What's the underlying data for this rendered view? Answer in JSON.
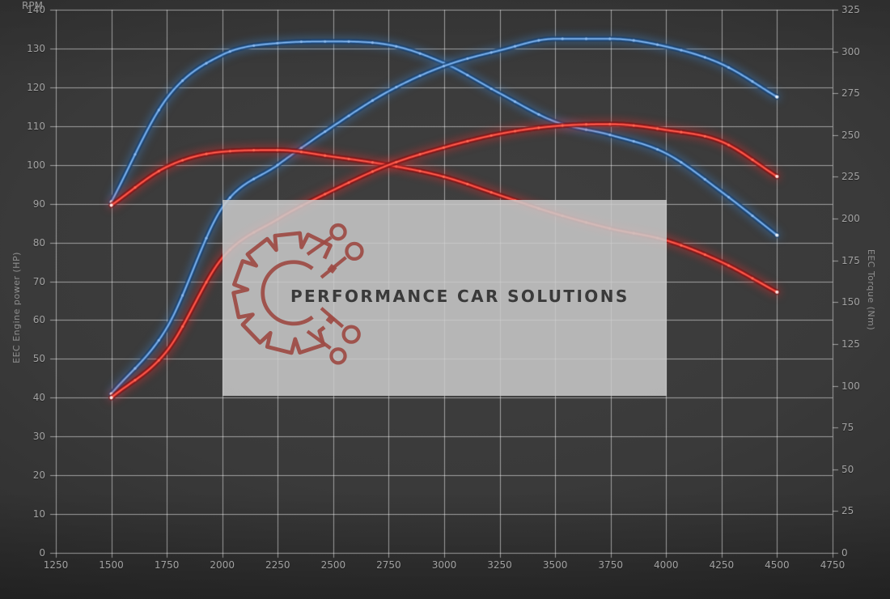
{
  "watermark": {
    "text": "PERFORMANCE CAR SOLUTIONS",
    "logo_icon": "gear-circuit-icon",
    "box_color": "#cbcbcb",
    "logo_color": "#9d4b44",
    "text_color": "#3a3a3a"
  },
  "colors": {
    "background_center": "#3f3f3f",
    "background_edge": "#232323",
    "gridline": "rgba(255,255,255,0.52)",
    "tick_text": "#a2a2a2",
    "axis_title_text": "#8f8f8f",
    "red_curve": "#e23030",
    "red_glow": "#7d1212",
    "red_core": "#ff6a55",
    "blue_curve": "#3f80c6",
    "blue_glow": "#173f6e",
    "blue_core": "#8fbcee"
  },
  "chart_data": {
    "type": "line",
    "title": "",
    "xlabel": "RPM",
    "grid": true,
    "legend": false,
    "x_ticks": [
      1250,
      1500,
      1750,
      2000,
      2250,
      2500,
      2750,
      3000,
      3250,
      3500,
      3750,
      4000,
      4250,
      4500,
      4750
    ],
    "left_axis": {
      "label": "EEC Engine power (HP)",
      "range": [
        0,
        140
      ],
      "ticks": [
        0,
        10,
        20,
        30,
        40,
        50,
        60,
        70,
        80,
        90,
        100,
        110,
        120,
        130,
        140
      ]
    },
    "right_axis": {
      "label": "EEC Torque (Nm)",
      "range": [
        0,
        325
      ],
      "ticks": [
        0,
        25,
        50,
        75,
        100,
        125,
        150,
        175,
        200,
        225,
        250,
        275,
        300,
        325
      ]
    },
    "x": [
      1500,
      1750,
      2000,
      2250,
      2500,
      2750,
      3000,
      3250,
      3500,
      3750,
      4000,
      4250,
      4500
    ],
    "series": [
      {
        "name": "torque-blue",
        "axis": "right",
        "unit": "Nm",
        "color": "blue",
        "values": [
          210,
          272,
          298,
          305,
          306,
          304,
          293,
          275,
          258,
          250,
          239,
          216,
          190
        ]
      },
      {
        "name": "power-blue",
        "axis": "left",
        "unit": "HP",
        "color": "blue",
        "values": [
          41,
          58,
          89,
          100,
          110,
          119,
          125.5,
          129.5,
          132.5,
          132.5,
          130.5,
          126,
          117.5
        ]
      },
      {
        "name": "torque-red",
        "axis": "right",
        "unit": "Nm",
        "color": "red",
        "values": [
          208,
          231,
          240,
          241,
          237,
          232,
          225,
          214,
          203,
          194,
          187,
          174,
          156
        ]
      },
      {
        "name": "power-red",
        "axis": "left",
        "unit": "HP",
        "color": "red",
        "values": [
          40,
          52,
          76,
          86,
          93.5,
          100,
          104.5,
          108,
          110,
          110.5,
          109,
          106,
          97
        ]
      }
    ],
    "marker_interval_rpm": 107
  }
}
